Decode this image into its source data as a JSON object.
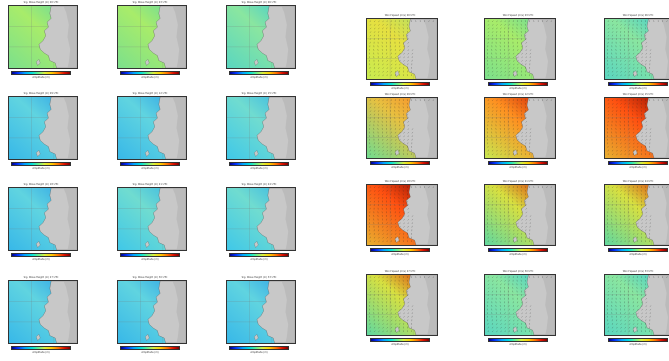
{
  "colorbar_label": "Amplitude (m)",
  "colors": {
    "land": "#c8c8c8",
    "coast": "#555555",
    "arrow": "#222222",
    "palette": [
      "#00008b",
      "#0030ff",
      "#00a0ff",
      "#00e0e0",
      "#60f090",
      "#d8f040",
      "#ffd000",
      "#ff7000",
      "#e01000",
      "#800000"
    ]
  },
  "left_grid": {
    "panels": [
      {
        "title": "Sig. Wave Height (m) 00 UTC",
        "field": "green"
      },
      {
        "title": "Sig. Wave Height (m) 03 UTC",
        "field": "green"
      },
      {
        "title": "Sig. Wave Height (m) 06 UTC",
        "field": "tealgreen"
      },
      {
        "title": "Sig. Wave Height (m) 09 UTC",
        "field": "cyanblue"
      },
      {
        "title": "Sig. Wave Height (m) 12 UTC",
        "field": "cyanblue"
      },
      {
        "title": "Sig. Wave Height (m) 15 UTC",
        "field": "cyan"
      },
      {
        "title": "Sig. Wave Height (m) 18 UTC",
        "field": "cyanblue"
      },
      {
        "title": "Sig. Wave Height (m) 21 UTC",
        "field": "cyan"
      },
      {
        "title": "Sig. Wave Height (m) 24 UTC",
        "field": "cyan"
      },
      {
        "title": "Sig. Wave Height (m) 27 UTC",
        "field": "cyanblue"
      },
      {
        "title": "Sig. Wave Height (m) 30 UTC",
        "field": "cyanblue"
      },
      {
        "title": "Sig. Wave Height (m) 33 UTC",
        "field": "cyanblue"
      }
    ]
  },
  "right_grid": {
    "panels": [
      {
        "title": "Wind Speed (m/s) 00 UTC",
        "field": "yellowgreen"
      },
      {
        "title": "Wind Speed (m/s) 03 UTC",
        "field": "green"
      },
      {
        "title": "Wind Speed (m/s) 06 UTC",
        "field": "tealgreen"
      },
      {
        "title": "Wind Speed (m/s) 09 UTC",
        "field": "green_orange"
      },
      {
        "title": "Wind Speed (m/s) 12 UTC",
        "field": "yellow_red"
      },
      {
        "title": "Wind Speed (m/s) 15 UTC",
        "field": "orange_dark"
      },
      {
        "title": "Wind Speed (m/s) 18 UTC",
        "field": "orange_dark"
      },
      {
        "title": "Wind Speed (m/s) 21 UTC",
        "field": "green_red"
      },
      {
        "title": "Wind Speed (m/s) 24 UTC",
        "field": "green_red"
      },
      {
        "title": "Wind Speed (m/s) 27 UTC",
        "field": "green_red"
      },
      {
        "title": "Wind Speed (m/s) 30 UTC",
        "field": "tealgreen"
      },
      {
        "title": "Wind Speed (m/s) 33 UTC",
        "field": "tealgreen"
      }
    ]
  }
}
